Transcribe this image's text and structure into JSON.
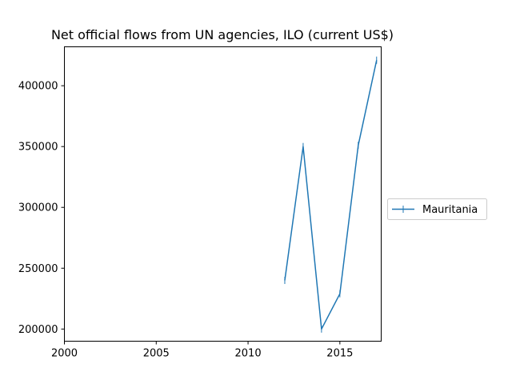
{
  "chart_data": {
    "type": "line",
    "title": "Net official flows from UN agencies, ILO (current US$)",
    "xlabel": "",
    "ylabel": "",
    "xlim": [
      2000,
      2017.25
    ],
    "ylim": [
      190000,
      432000
    ],
    "x_ticks": [
      2000,
      2005,
      2010,
      2015
    ],
    "y_ticks": [
      200000,
      250000,
      300000,
      350000,
      400000
    ],
    "x_tick_labels": [
      "2000",
      "2005",
      "2010",
      "2015"
    ],
    "y_tick_labels": [
      "200000",
      "250000",
      "300000",
      "350000",
      "400000"
    ],
    "grid": false,
    "legend_position": "right",
    "series": [
      {
        "name": "Mauritania",
        "color": "#1f77b4",
        "marker": "vertical-line",
        "x": [
          2012,
          2013,
          2014,
          2015,
          2016,
          2017
        ],
        "y": [
          240000,
          350000,
          200000,
          229000,
          351000,
          421000
        ]
      }
    ]
  }
}
